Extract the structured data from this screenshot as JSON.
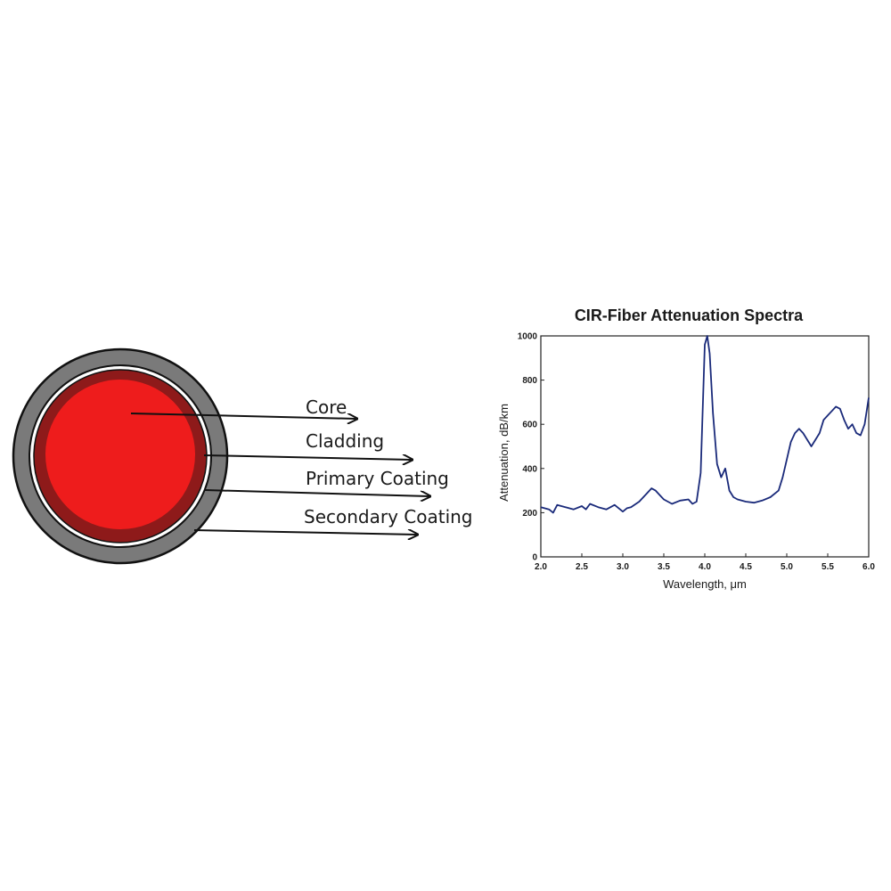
{
  "diagram": {
    "labels": {
      "core": "Core",
      "cladding": "Cladding",
      "primary": "Primary Coating",
      "secondary": "Secondary Coating"
    },
    "colors": {
      "core": "#ee1c1c",
      "cladding": "#8e1a1a",
      "primary": "#ffffff",
      "secondary": "#7a7a7a",
      "outline": "#111111"
    }
  },
  "chart_data": {
    "type": "line",
    "title": "CIR-Fiber Attenuation Spectra",
    "xlabel": "Wavelength, μm",
    "ylabel": "Attenuation, dB/km",
    "xlim": [
      2.0,
      6.0
    ],
    "ylim": [
      0,
      1000
    ],
    "xticks": [
      "2.0",
      "2.5",
      "3.0",
      "3.5",
      "4.0",
      "4.5",
      "5.0",
      "5.5",
      "6.0"
    ],
    "yticks": [
      "0",
      "200",
      "400",
      "600",
      "800",
      "1000"
    ],
    "line_color": "#1a2a7a",
    "x": [
      2.0,
      2.1,
      2.15,
      2.2,
      2.3,
      2.4,
      2.5,
      2.55,
      2.6,
      2.7,
      2.8,
      2.9,
      3.0,
      3.05,
      3.1,
      3.2,
      3.3,
      3.35,
      3.4,
      3.45,
      3.5,
      3.6,
      3.7,
      3.8,
      3.85,
      3.9,
      3.95,
      4.0,
      4.03,
      4.06,
      4.1,
      4.15,
      4.2,
      4.25,
      4.3,
      4.35,
      4.4,
      4.5,
      4.6,
      4.7,
      4.8,
      4.9,
      4.95,
      5.0,
      5.05,
      5.1,
      5.15,
      5.2,
      5.3,
      5.4,
      5.45,
      5.5,
      5.55,
      5.6,
      5.65,
      5.7,
      5.75,
      5.8,
      5.85,
      5.9,
      5.95,
      6.0
    ],
    "y": [
      225,
      215,
      200,
      235,
      225,
      215,
      230,
      215,
      240,
      225,
      215,
      235,
      205,
      220,
      225,
      250,
      290,
      310,
      300,
      280,
      260,
      240,
      255,
      260,
      240,
      250,
      380,
      960,
      1000,
      920,
      650,
      420,
      360,
      400,
      300,
      270,
      260,
      250,
      245,
      255,
      270,
      300,
      360,
      440,
      520,
      560,
      580,
      560,
      500,
      560,
      620,
      640,
      660,
      680,
      670,
      620,
      580,
      600,
      560,
      550,
      600,
      720
    ]
  }
}
